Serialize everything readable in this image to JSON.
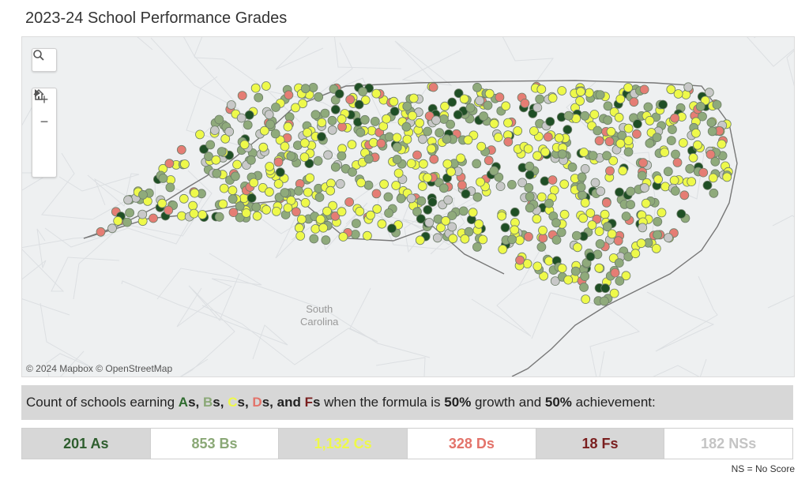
{
  "title": "2023-24 School Performance Grades",
  "map": {
    "attribution": "© 2024 Mapbox  © OpenStreetMap",
    "state_label": [
      "South",
      "Carolina"
    ],
    "controls": {
      "search_icon": "search-icon",
      "zoom_in": "+",
      "zoom_out": "−",
      "home_icon": "home-icon",
      "play_icon": "play-icon"
    }
  },
  "caption": {
    "prefix": "Count of schools earning ",
    "a": "A",
    "b": "B",
    "c": "C",
    "d": "D",
    "f": "F",
    "s": "s",
    "comma": ", ",
    "and": "and ",
    "mid": " when the formula is ",
    "growth_pct": "50%",
    "growth_word": " growth and ",
    "ach_pct": "50%",
    "ach_word": " achievement:"
  },
  "counts": [
    {
      "label": "201 As",
      "color": "#2e5e2e",
      "bg": "#d7d7d7"
    },
    {
      "label": "853 Bs",
      "color": "#8aa876",
      "bg": "#ffffff"
    },
    {
      "label": "1,132 Cs",
      "color": "#eef94a",
      "bg": "#d7d7d7"
    },
    {
      "label": "328 Ds",
      "color": "#e3736a",
      "bg": "#ffffff"
    },
    {
      "label": "18 Fs",
      "color": "#7a1f1f",
      "bg": "#d7d7d7"
    },
    {
      "label": "182 NSs",
      "color": "#c4c4c4",
      "bg": "#ffffff"
    }
  ],
  "note": "NS = No Score",
  "grade_colors": {
    "A": "#1f4f25",
    "B": "#8faa7b",
    "C": "#eef94a",
    "D": "#e57d74",
    "F": "#7a1f1f",
    "NS": "#c8c8c8"
  }
}
